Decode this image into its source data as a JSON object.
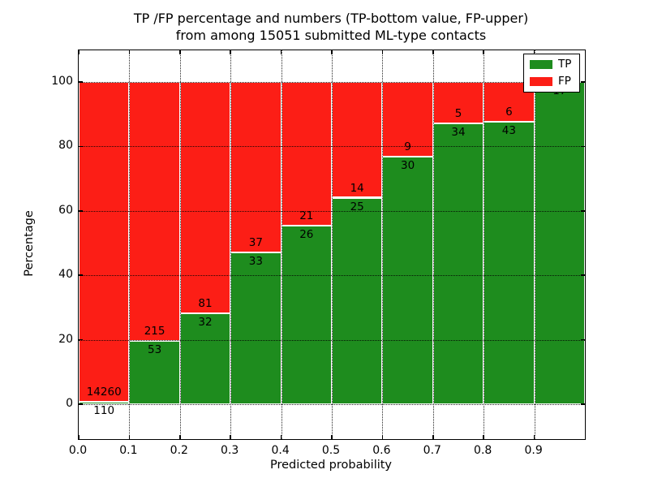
{
  "title": {
    "line1": "TP /FP percentage and numbers (TP-bottom value, FP-upper)",
    "line2": "from among 15051 submitted ML-type contacts"
  },
  "chart_data": {
    "type": "bar",
    "stacked": true,
    "title": "TP /FP percentage and numbers (TP-bottom value, FP-upper)\nfrom among 15051 submitted ML-type contacts",
    "xlabel": "Predicted probability",
    "ylabel": "Percentage",
    "total_submitted": 15051,
    "xlim": [
      0.0,
      1.0
    ],
    "ylim": [
      -10.8,
      109.8
    ],
    "xticks": [
      "0.0",
      "0.1",
      "0.2",
      "0.3",
      "0.4",
      "0.5",
      "0.6",
      "0.7",
      "0.8",
      "0.9"
    ],
    "xtick_values": [
      0.0,
      0.1,
      0.2,
      0.3,
      0.4,
      0.5,
      0.6,
      0.7,
      0.8,
      0.9
    ],
    "yticks": [
      0,
      20,
      40,
      60,
      80,
      100
    ],
    "grid": true,
    "legend_position": "upper right",
    "legend": [
      {
        "label": "TP",
        "color": "#1e8c1e"
      },
      {
        "label": "FP",
        "color": "#fc1e16"
      }
    ],
    "colors": {
      "tp": "#1e8c1e",
      "fp": "#fc1e16"
    },
    "bins": [
      {
        "x0": 0.0,
        "x1": 0.1,
        "tp": 110,
        "fp": 14260
      },
      {
        "x0": 0.1,
        "x1": 0.2,
        "tp": 53,
        "fp": 215
      },
      {
        "x0": 0.2,
        "x1": 0.3,
        "tp": 32,
        "fp": 81
      },
      {
        "x0": 0.3,
        "x1": 0.4,
        "tp": 33,
        "fp": 37
      },
      {
        "x0": 0.4,
        "x1": 0.5,
        "tp": 26,
        "fp": 21
      },
      {
        "x0": 0.5,
        "x1": 0.6,
        "tp": 25,
        "fp": 14
      },
      {
        "x0": 0.6,
        "x1": 0.7,
        "tp": 30,
        "fp": 9
      },
      {
        "x0": 0.7,
        "x1": 0.8,
        "tp": 34,
        "fp": 5
      },
      {
        "x0": 0.8,
        "x1": 0.9,
        "tp": 43,
        "fp": 6
      },
      {
        "x0": 0.9,
        "x1": 1.0,
        "tp": 17,
        "fp": 0
      }
    ]
  }
}
